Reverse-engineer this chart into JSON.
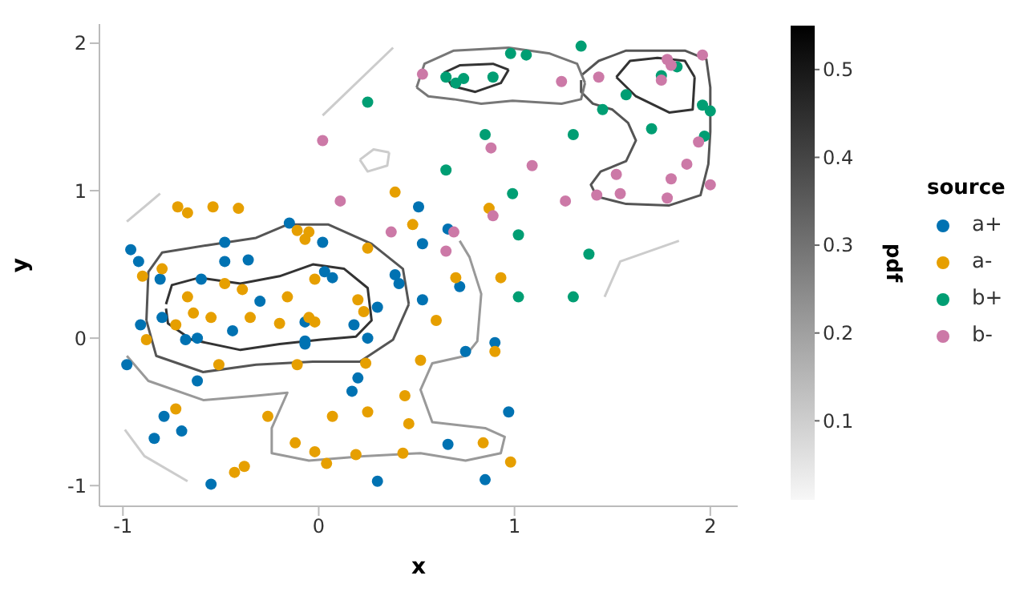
{
  "chart_data": {
    "type": "scatter",
    "xlabel": "x",
    "ylabel": "y",
    "legend_title": "source",
    "clabel": "pdf",
    "xlim": [
      -1.12,
      2.14
    ],
    "ylim": [
      -1.14,
      2.13
    ],
    "xticks": [
      -1,
      0,
      1,
      2
    ],
    "yticks": [
      -1,
      0,
      1,
      2
    ],
    "clim": [
      0.01,
      0.55
    ],
    "cticks": [
      0.1,
      0.2,
      0.3,
      0.4,
      0.5
    ],
    "grid": false,
    "legend": "right",
    "marker": "circle",
    "series": [
      {
        "type": "line",
        "marker": "none",
        "color": "#333333",
        "x": [
          -0.78,
          -0.75,
          -0.61,
          -0.4,
          -0.2,
          -0.03,
          0.13,
          0.25,
          0.27,
          0.19,
          0.01,
          -0.2,
          -0.4,
          -0.65,
          -0.77,
          -0.78
        ],
        "values": [
          0.23,
          0.36,
          0.41,
          0.37,
          0.42,
          0.5,
          0.47,
          0.34,
          0.12,
          0.01,
          -0.01,
          -0.04,
          -0.08,
          -0.01,
          0.1,
          0.2
        ]
      },
      {
        "type": "line",
        "marker": "none",
        "color": "#555555",
        "x": [
          -0.88,
          -0.87,
          -0.8,
          -0.57,
          -0.32,
          -0.16,
          0.05,
          0.27,
          0.43,
          0.46
        ],
        "values": [
          0.12,
          0.45,
          0.58,
          0.63,
          0.68,
          0.77,
          0.77,
          0.64,
          0.47,
          0.23
        ]
      },
      {
        "type": "line",
        "marker": "none",
        "color": "#555555",
        "x": [
          -0.88,
          -0.83,
          -0.59,
          -0.32,
          -0.03,
          0.21,
          0.38,
          0.46
        ],
        "values": [
          0.12,
          -0.12,
          -0.23,
          -0.18,
          -0.16,
          -0.16,
          -0.01,
          0.23
        ]
      },
      {
        "type": "line",
        "marker": "none",
        "color": "#333333",
        "x": [
          1.52,
          1.59,
          1.73,
          1.87,
          1.92
        ],
        "values": [
          1.77,
          1.88,
          1.9,
          1.88,
          1.77
        ]
      },
      {
        "type": "line",
        "marker": "none",
        "color": "#333333",
        "x": [
          1.52,
          1.62,
          1.79,
          1.91,
          1.92
        ],
        "values": [
          1.77,
          1.64,
          1.53,
          1.55,
          1.77
        ]
      },
      {
        "type": "line",
        "marker": "none",
        "color": "#333333",
        "x": [
          0.64,
          0.72,
          0.89,
          0.97
        ],
        "values": [
          1.8,
          1.85,
          1.86,
          1.82
        ]
      },
      {
        "type": "line",
        "marker": "none",
        "color": "#333333",
        "x": [
          0.64,
          0.68,
          0.8,
          0.93,
          0.97
        ],
        "values": [
          1.8,
          1.71,
          1.67,
          1.73,
          1.82
        ]
      },
      {
        "type": "line",
        "marker": "none",
        "color": "#555555",
        "x": [
          1.34,
          1.43,
          1.57,
          1.7,
          1.87,
          1.98,
          2.0,
          2.0,
          1.99,
          1.95,
          1.79,
          1.57,
          1.42,
          1.39,
          1.44,
          1.57,
          1.62,
          1.58,
          1.5,
          1.4,
          1.34,
          1.34
        ],
        "values": [
          1.78,
          1.88,
          1.95,
          1.95,
          1.95,
          1.89,
          1.7,
          1.4,
          1.18,
          0.97,
          0.9,
          0.91,
          0.96,
          1.04,
          1.13,
          1.2,
          1.34,
          1.46,
          1.55,
          1.59,
          1.67,
          1.75
        ]
      },
      {
        "type": "line",
        "marker": "none",
        "color": "#777777",
        "x": [
          0.5,
          0.54,
          0.69,
          0.97,
          1.18,
          1.32,
          1.36
        ],
        "values": [
          1.7,
          1.86,
          1.95,
          1.97,
          1.93,
          1.86,
          1.73
        ]
      },
      {
        "type": "line",
        "marker": "none",
        "color": "#777777",
        "x": [
          1.36,
          1.34,
          1.24,
          0.99,
          0.83,
          0.69,
          0.56,
          0.5
        ],
        "values": [
          1.73,
          1.62,
          1.59,
          1.61,
          1.59,
          1.62,
          1.64,
          1.7
        ]
      },
      {
        "type": "line",
        "marker": "none",
        "color": "#999999",
        "x": [
          -0.98,
          -0.87,
          -0.59,
          -0.32,
          -0.16,
          -0.24,
          -0.24,
          -0.05,
          0.23,
          0.52,
          0.75,
          0.93,
          0.95,
          0.85,
          0.58,
          0.52,
          0.58,
          0.75,
          0.81,
          0.83,
          0.77,
          0.72
        ],
        "values": [
          -0.12,
          -0.29,
          -0.42,
          -0.39,
          -0.37,
          -0.61,
          -0.78,
          -0.83,
          -0.8,
          -0.78,
          -0.83,
          -0.78,
          -0.67,
          -0.61,
          -0.57,
          -0.35,
          -0.17,
          -0.12,
          -0.02,
          0.3,
          0.55,
          0.66
        ]
      },
      {
        "type": "line",
        "marker": "none",
        "color": "#cccccc",
        "x": [
          -0.99,
          -0.89,
          -0.67
        ],
        "values": [
          -0.62,
          -0.8,
          -0.97
        ]
      },
      {
        "type": "line",
        "marker": "none",
        "color": "#cccccc",
        "x": [
          0.02,
          0.38
        ],
        "values": [
          1.51,
          1.97
        ]
      },
      {
        "type": "line",
        "marker": "none",
        "color": "#cccccc",
        "x": [
          -0.98,
          -0.81
        ],
        "values": [
          0.79,
          0.98
        ]
      },
      {
        "type": "line",
        "marker": "none",
        "color": "#cccccc",
        "x": [
          0.21,
          0.28,
          0.36
        ],
        "values": [
          1.21,
          1.28,
          1.26
        ]
      },
      {
        "type": "line",
        "marker": "none",
        "color": "#cccccc",
        "x": [
          0.36,
          0.35,
          0.25,
          0.21
        ],
        "values": [
          1.26,
          1.17,
          1.13,
          1.21
        ]
      },
      {
        "type": "line",
        "marker": "none",
        "color": "#cccccc",
        "x": [
          1.46,
          1.54,
          1.84
        ],
        "values": [
          0.28,
          0.52,
          0.66
        ]
      },
      {
        "name": "a+",
        "color": "#0072b2",
        "x": [
          -0.98,
          -0.96,
          -0.92,
          -0.91,
          -0.81,
          -0.8,
          -0.68,
          -0.62,
          -0.62,
          -0.79,
          -0.7,
          -0.84,
          -0.55,
          -0.6,
          -0.48,
          -0.48,
          -0.44,
          -0.36,
          -0.3,
          -0.15,
          -0.07,
          -0.07,
          -0.07,
          0.02,
          0.03,
          0.07,
          0.18,
          0.2,
          0.17,
          0.25,
          0.3,
          0.3,
          0.39,
          0.41,
          0.51,
          0.53,
          0.53,
          0.66,
          0.72,
          0.75,
          0.9,
          0.97,
          0.66,
          0.85
        ],
        "values": [
          -0.18,
          0.6,
          0.52,
          0.09,
          0.4,
          0.14,
          -0.01,
          0.0,
          -0.29,
          -0.53,
          -0.63,
          -0.68,
          -0.99,
          0.4,
          0.65,
          0.52,
          0.05,
          0.53,
          0.25,
          0.78,
          0.11,
          -0.02,
          -0.04,
          0.65,
          0.45,
          0.41,
          0.09,
          -0.27,
          -0.36,
          0.0,
          0.21,
          -0.97,
          0.43,
          0.37,
          0.89,
          0.64,
          0.26,
          0.74,
          0.35,
          -0.09,
          -0.03,
          -0.5,
          -0.72,
          -0.96
        ]
      },
      {
        "name": "a-",
        "color": "#e69f00",
        "x": [
          -0.72,
          -0.67,
          -0.54,
          -0.41,
          -0.11,
          -0.05,
          -0.07,
          0.25,
          0.39,
          0.48,
          -0.9,
          -0.8,
          -0.88,
          -0.67,
          -0.64,
          -0.73,
          -0.55,
          -0.48,
          -0.39,
          -0.35,
          -0.16,
          -0.2,
          -0.05,
          -0.02,
          -0.02,
          0.2,
          0.23,
          -0.51,
          -0.11,
          0.24,
          -0.73,
          -0.26,
          0.07,
          0.25,
          0.44,
          0.46,
          -0.12,
          -0.02,
          0.04,
          0.19,
          0.43,
          -0.43,
          -0.38,
          0.52,
          0.7,
          0.93,
          0.6,
          0.9,
          0.84,
          0.98,
          0.87
        ],
        "values": [
          0.89,
          0.85,
          0.89,
          0.88,
          0.73,
          0.72,
          0.67,
          0.61,
          0.99,
          0.77,
          0.42,
          0.47,
          -0.01,
          0.28,
          0.17,
          0.09,
          0.14,
          0.37,
          0.33,
          0.14,
          0.28,
          0.1,
          0.14,
          0.11,
          0.4,
          0.26,
          0.18,
          -0.18,
          -0.18,
          -0.17,
          -0.48,
          -0.53,
          -0.53,
          -0.5,
          -0.39,
          -0.58,
          -0.71,
          -0.77,
          -0.85,
          -0.79,
          -0.78,
          -0.91,
          -0.87,
          -0.15,
          0.41,
          0.41,
          0.12,
          -0.09,
          -0.71,
          -0.84,
          0.88
        ]
      },
      {
        "name": "b+",
        "color": "#009e73",
        "x": [
          0.25,
          0.98,
          1.06,
          1.34,
          0.65,
          0.7,
          0.74,
          0.89,
          0.85,
          1.3,
          0.65,
          0.99,
          1.02,
          1.38,
          1.45,
          1.57,
          1.7,
          1.75,
          1.83,
          1.96,
          2.0,
          1.97,
          1.02,
          1.3
        ],
        "values": [
          1.6,
          1.93,
          1.92,
          1.98,
          1.77,
          1.73,
          1.76,
          1.77,
          1.38,
          1.38,
          1.14,
          0.98,
          0.7,
          0.57,
          1.55,
          1.65,
          1.42,
          1.78,
          1.84,
          1.58,
          1.54,
          1.37,
          0.28,
          0.28
        ]
      },
      {
        "name": "b-",
        "color": "#cc79a7",
        "x": [
          0.53,
          0.02,
          0.11,
          0.37,
          1.24,
          1.43,
          1.78,
          1.8,
          1.75,
          1.96,
          0.88,
          1.09,
          1.52,
          1.8,
          1.88,
          1.94,
          2.0,
          1.26,
          1.42,
          1.54,
          1.78,
          0.89,
          0.69,
          0.65
        ],
        "values": [
          1.79,
          1.34,
          0.93,
          0.72,
          1.74,
          1.77,
          1.89,
          1.85,
          1.75,
          1.92,
          1.29,
          1.17,
          1.11,
          1.08,
          1.18,
          1.33,
          1.04,
          0.93,
          0.97,
          0.98,
          0.95,
          0.83,
          0.72,
          0.59
        ]
      }
    ]
  }
}
